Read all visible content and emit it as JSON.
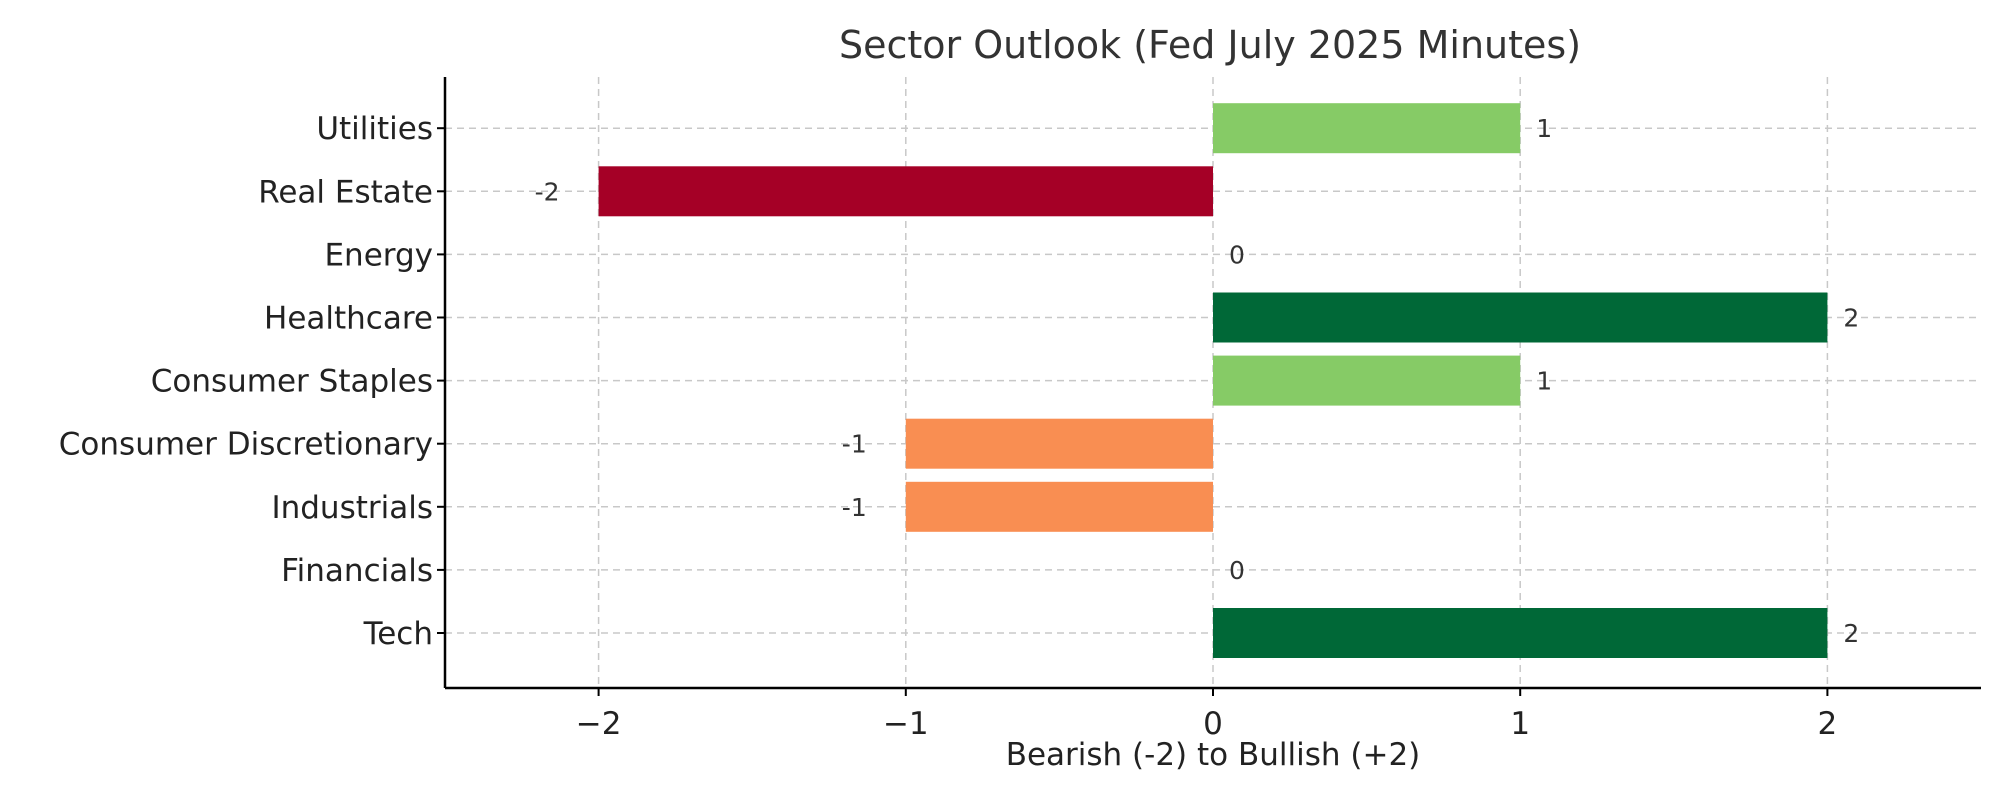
{
  "chart_data": {
    "type": "bar",
    "orientation": "horizontal",
    "title": "Sector Outlook (Fed July 2025 Minutes)",
    "xlabel": "Bearish (-2) to Bullish (+2)",
    "ylabel": "",
    "xlim": [
      -2.5,
      2.5
    ],
    "xticks": [
      -2,
      -1,
      0,
      1,
      2
    ],
    "xtick_labels": [
      "−2",
      "−1",
      "0",
      "1",
      "2"
    ],
    "grid": true,
    "categories": [
      "Tech",
      "Financials",
      "Industrials",
      "Consumer Discretionary",
      "Consumer Staples",
      "Healthcare",
      "Energy",
      "Real Estate",
      "Utilities"
    ],
    "values": [
      2,
      0,
      -1,
      -1,
      1,
      2,
      0,
      -2,
      1
    ],
    "value_labels": [
      "2",
      "0",
      "-1",
      "-1",
      "1",
      "2",
      "0",
      "-2",
      "1"
    ],
    "colors": {
      "2": "#006837",
      "1": "#86cb66",
      "0": "#ffffbf",
      "-1": "#f98e52",
      "-2": "#a50026"
    }
  }
}
